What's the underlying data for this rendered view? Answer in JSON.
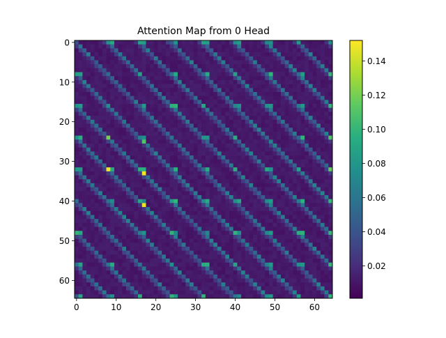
{
  "chart_data": {
    "type": "heatmap",
    "title": "Attention Map from 0 Head",
    "xlabel": "",
    "ylabel": "",
    "rows": 65,
    "cols": 65,
    "xlim": [
      -0.5,
      64.5
    ],
    "ylim": [
      64.5,
      -0.5
    ],
    "x_ticks": [
      0,
      10,
      20,
      30,
      40,
      50,
      60
    ],
    "y_ticks": [
      0,
      10,
      20,
      30,
      40,
      50,
      60
    ],
    "colormap": "viridis",
    "colorbar": {
      "min": 0.001,
      "max": 0.152,
      "ticks": [
        0.02,
        0.04,
        0.06,
        0.08,
        0.1,
        0.12,
        0.14
      ],
      "tick_labels": [
        "0.02",
        "0.04",
        "0.06",
        "0.08",
        "0.10",
        "0.12",
        "0.14"
      ]
    },
    "pattern": {
      "description_values": "block-periodic attention, period 8, diagonal bands shifted by 1 per row",
      "period": 8,
      "base_value": 0.008,
      "band_value": 0.05,
      "column_spike_value": 0.09,
      "last_column_spike_value": 0.1
    },
    "peaks": [
      {
        "row": 32,
        "col": 8,
        "value": 0.15
      },
      {
        "row": 33,
        "col": 17,
        "value": 0.15
      },
      {
        "row": 41,
        "col": 17,
        "value": 0.148
      },
      {
        "row": 24,
        "col": 8,
        "value": 0.12
      },
      {
        "row": 25,
        "col": 17,
        "value": 0.11
      },
      {
        "row": 32,
        "col": 64,
        "value": 0.115
      },
      {
        "row": 24,
        "col": 64,
        "value": 0.11
      },
      {
        "row": 16,
        "col": 64,
        "value": 0.1
      },
      {
        "row": 8,
        "col": 64,
        "value": 0.1
      }
    ],
    "grid": false,
    "legend": "colorbar-right"
  }
}
